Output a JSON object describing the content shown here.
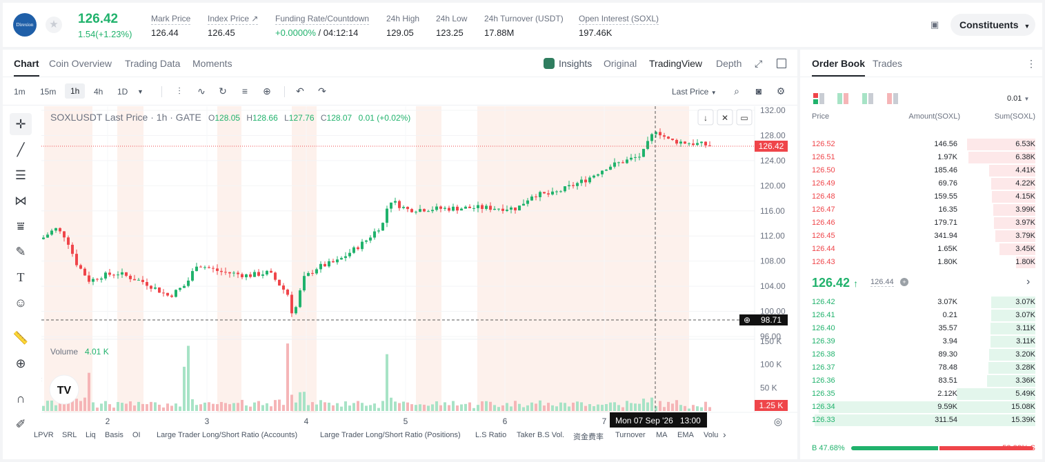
{
  "header": {
    "logo_text": "Direxion",
    "price": "126.42",
    "change": "1.54(+1.23%)",
    "stats": [
      {
        "label": "Mark Price",
        "value": "126.44"
      },
      {
        "label": "Index Price ↗",
        "value": "126.45"
      },
      {
        "label": "Funding Rate/Countdown",
        "value_green": "+0.0000%",
        "value": " / 04:12:14"
      },
      {
        "label": "24h High",
        "value": "129.05"
      },
      {
        "label": "24h Low",
        "value": "123.25"
      },
      {
        "label": "24h Turnover (USDT)",
        "value": "17.88M"
      },
      {
        "label": "Open Interest (SOXL)",
        "value": "197.46K"
      }
    ],
    "constituents_label": "Constituents",
    "colors": {
      "up": "#20b26c",
      "down": "#ef454a"
    }
  },
  "chart_tabs": [
    "Chart",
    "Coin Overview",
    "Trading Data",
    "Moments"
  ],
  "view_tabs": [
    "Insights",
    "Original",
    "TradingView",
    "Depth"
  ],
  "intervals": [
    "1m",
    "15m",
    "1h",
    "4h",
    "1D"
  ],
  "price_type": "Last Price",
  "legend": {
    "symbol": "SOXLUSDT Last Price · 1h · GATE",
    "o_label": "O",
    "o": "128.05",
    "h_label": "H",
    "h": "128.66",
    "l_label": "L",
    "l": "127.76",
    "c_label": "C",
    "c": "128.07",
    "chg": "0.01 (+0.02%)"
  },
  "volume_label": "Volume",
  "volume_value": "4.01 K",
  "last_price_tag": "126.42",
  "crosshair_price_tag": "98.71",
  "crosshair_time_tag": "Mon 07 Sep '26   13:00",
  "volume_last_tag": "1.25 K",
  "chart_data": {
    "type": "candlestick",
    "price_ticks": [
      "132.00",
      "128.00",
      "124.00",
      "120.00",
      "116.00",
      "112.00",
      "108.00",
      "104.00",
      "100.00",
      "96.00"
    ],
    "volume_ticks": [
      "150 K",
      "100 K",
      "50 K"
    ],
    "x_ticks": [
      "2",
      "3",
      "4",
      "5",
      "6",
      "7"
    ],
    "ylim": [
      96,
      132
    ],
    "volume_ylim": [
      0,
      160
    ]
  },
  "indicators": [
    "LPVR",
    "SRL",
    "Liq",
    "Basis",
    "OI",
    "Large Trader Long/Short Ratio (Accounts)",
    "Large Trader Long/Short Ratio (Positions)",
    "L.S Ratio",
    "Taker B.S Vol.",
    "资金费率",
    "Turnover",
    "MA",
    "EMA",
    "Volu"
  ],
  "orderbook": {
    "tabs": [
      "Order Book",
      "Trades"
    ],
    "precision": "0.01",
    "headers": [
      "Price",
      "Amount(SOXL)",
      "Sum(SOXL)"
    ],
    "asks": [
      {
        "price": "126.52",
        "amount": "146.56",
        "sum": "6.53K"
      },
      {
        "price": "126.51",
        "amount": "1.97K",
        "sum": "6.38K"
      },
      {
        "price": "126.50",
        "amount": "185.46",
        "sum": "4.41K"
      },
      {
        "price": "126.49",
        "amount": "69.76",
        "sum": "4.22K"
      },
      {
        "price": "126.48",
        "amount": "159.55",
        "sum": "4.15K"
      },
      {
        "price": "126.47",
        "amount": "16.35",
        "sum": "3.99K"
      },
      {
        "price": "126.46",
        "amount": "179.71",
        "sum": "3.97K"
      },
      {
        "price": "126.45",
        "amount": "341.94",
        "sum": "3.79K"
      },
      {
        "price": "126.44",
        "amount": "1.65K",
        "sum": "3.45K"
      },
      {
        "price": "126.43",
        "amount": "1.80K",
        "sum": "1.80K"
      }
    ],
    "mid_price": "126.42",
    "mid_mark": "126.44",
    "bids": [
      {
        "price": "126.42",
        "amount": "3.07K",
        "sum": "3.07K"
      },
      {
        "price": "126.41",
        "amount": "0.21",
        "sum": "3.07K"
      },
      {
        "price": "126.40",
        "amount": "35.57",
        "sum": "3.11K"
      },
      {
        "price": "126.39",
        "amount": "3.94",
        "sum": "3.11K"
      },
      {
        "price": "126.38",
        "amount": "89.30",
        "sum": "3.20K"
      },
      {
        "price": "126.37",
        "amount": "78.48",
        "sum": "3.28K"
      },
      {
        "price": "126.36",
        "amount": "83.51",
        "sum": "3.36K"
      },
      {
        "price": "126.35",
        "amount": "2.12K",
        "sum": "5.49K"
      },
      {
        "price": "126.34",
        "amount": "9.59K",
        "sum": "15.08K"
      },
      {
        "price": "126.33",
        "amount": "311.54",
        "sum": "15.39K"
      }
    ],
    "buy_label": "B 47.68%",
    "sell_label": "52.32% S",
    "buy_ratio": 0.4768
  }
}
